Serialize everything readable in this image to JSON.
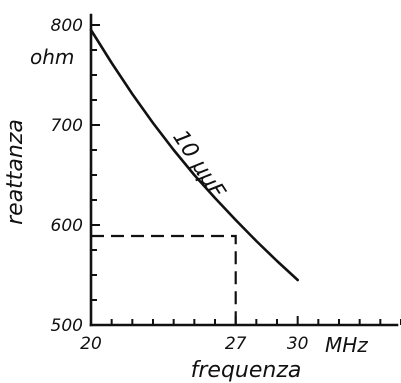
{
  "chart_data": {
    "type": "line",
    "x_ticks": [
      20,
      27,
      30
    ],
    "y_ticks": [
      500,
      600,
      700,
      800
    ],
    "xlim": [
      20,
      35
    ],
    "ylim": [
      500,
      810
    ],
    "x_unit": "MHz",
    "y_unit": "ohm",
    "xlabel": "frequenza",
    "ylabel": "reattanza",
    "grid": false,
    "series": [
      {
        "name": "10 µµF",
        "x": [
          20,
          21,
          22,
          23,
          24,
          25,
          26,
          27,
          28,
          29,
          30
        ],
        "y": [
          795,
          762,
          731,
          702,
          675,
          650,
          627,
          605,
          584,
          564,
          545
        ]
      }
    ],
    "annotation": {
      "x": 27,
      "y": 589
    }
  }
}
